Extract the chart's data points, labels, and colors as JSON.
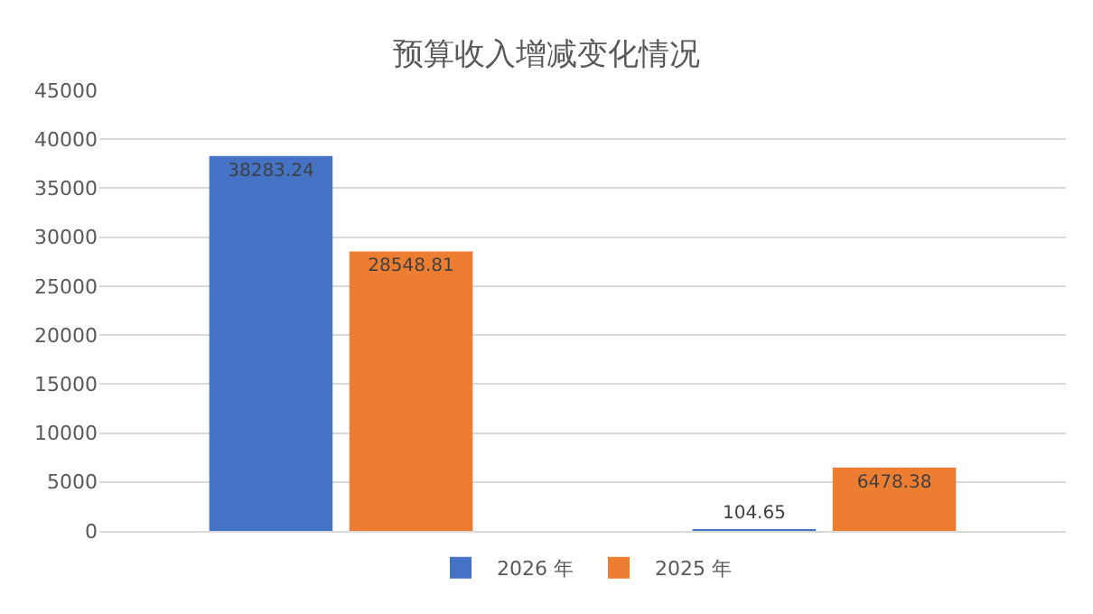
{
  "chart_data": {
    "type": "bar",
    "title": "预算收入增减变化情况",
    "categories": [
      null,
      null
    ],
    "series": [
      {
        "name": "2026 年",
        "color": "#4472c4",
        "values": [
          38283.24,
          104.65
        ]
      },
      {
        "name": "2025 年",
        "color": "#ed7d31",
        "values": [
          28548.81,
          6478.38
        ]
      }
    ],
    "ylim": [
      0,
      45000
    ],
    "yticks": [
      0,
      5000,
      10000,
      15000,
      20000,
      25000,
      30000,
      35000,
      40000,
      45000
    ],
    "grid": "y",
    "legend": "bottom",
    "data_labels": true,
    "tick_labels": "y"
  }
}
